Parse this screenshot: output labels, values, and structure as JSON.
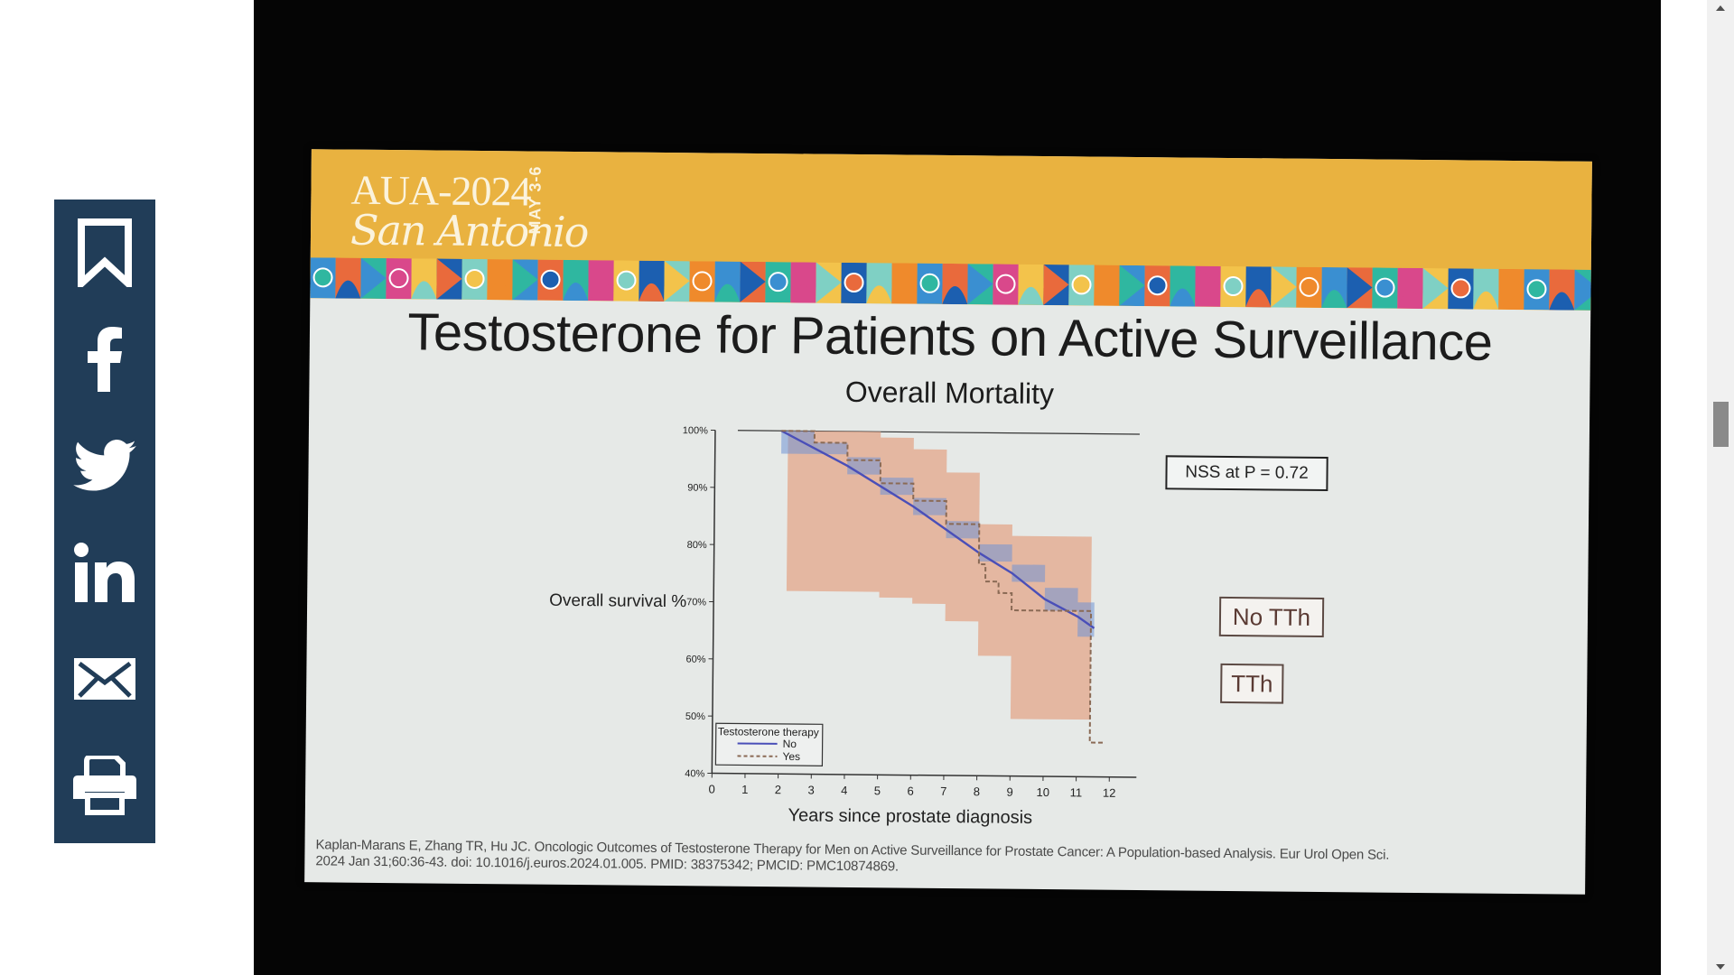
{
  "share": {
    "buttons": [
      {
        "icon": "bookmark-icon",
        "label": "Bookmark"
      },
      {
        "icon": "facebook-icon",
        "label": "Facebook"
      },
      {
        "icon": "twitter-icon",
        "label": "Twitter"
      },
      {
        "icon": "linkedin-icon",
        "label": "LinkedIn"
      },
      {
        "icon": "email-icon",
        "label": "Email"
      },
      {
        "icon": "print-icon",
        "label": "Print"
      }
    ],
    "color": "#213d58"
  },
  "slide": {
    "conference": "AUA-2024",
    "city": "San Antonio",
    "dates": "MAY 3-6",
    "title": "Testosterone for Patients on Active Surveillance",
    "subtitle": "Overall Mortality",
    "nss_label": "NSS at P = 0.72",
    "group_label_no": "No TTh",
    "group_label_yes": "TTh",
    "citation_line1": "Kaplan-Marans E, Zhang TR, Hu JC. Oncologic Outcomes of Testosterone Therapy for Men on Active Surveillance for Prostate Cancer: A Population-based Analysis. Eur Urol Open Sci.",
    "citation_line2": "2024 Jan 31;60:36-43. doi: 10.1016/j.euros.2024.01.005. PMID: 38375342; PMCID: PMC10874869.",
    "banner_color": "#e9b240"
  },
  "chart_data": {
    "type": "line",
    "title": "Overall Mortality",
    "xlabel": "Years since prostate diagnosis",
    "ylabel": "Overall survival %",
    "xlim": [
      0,
      12
    ],
    "ylim": [
      40,
      100
    ],
    "x_ticks": [
      "0",
      "1",
      "2",
      "3",
      "4",
      "5",
      "6",
      "7",
      "8",
      "9",
      "10",
      "11",
      "12"
    ],
    "y_ticks": [
      "40%",
      "50%",
      "60%",
      "70%",
      "80%",
      "90%",
      "100%"
    ],
    "legend_title": "Testosterone therapy",
    "legend_position": "bottom-left",
    "series": [
      {
        "name": "No",
        "style": "solid",
        "color": "#4a4fb8",
        "x": [
          2,
          3,
          4,
          5,
          6,
          7,
          8,
          9,
          10,
          11,
          11.5
        ],
        "y": [
          100,
          97,
          94,
          90.5,
          87,
          83,
          79,
          75.5,
          71,
          68,
          66
        ]
      },
      {
        "name": "Yes",
        "style": "dashed",
        "color": "#8a6a55",
        "x": [
          2,
          3,
          4,
          5,
          6,
          7,
          8,
          8.2,
          8.6,
          9,
          10,
          11,
          11.4,
          11.4,
          11.8
        ],
        "y": [
          100,
          98,
          95,
          91,
          88,
          84,
          77,
          74,
          72,
          69,
          69,
          69,
          69,
          46,
          46
        ]
      }
    ],
    "ci_bands": [
      {
        "series": "No",
        "color": "#6f93d6",
        "x": [
          2,
          3,
          4,
          5,
          6,
          7,
          8,
          9,
          10,
          11,
          11.5
        ],
        "upper": [
          100,
          98,
          95.5,
          92,
          88.5,
          84.5,
          80.5,
          77,
          73,
          70.5,
          70
        ],
        "lower": [
          96,
          96,
          92.5,
          89,
          85.5,
          81.5,
          77.5,
          74,
          69,
          64.5,
          62
        ]
      },
      {
        "series": "Yes",
        "color": "#e3a589",
        "x": [
          2.2,
          3,
          4,
          5,
          6,
          7,
          8,
          9,
          10,
          11,
          11.4
        ],
        "upper": [
          100,
          100,
          100,
          99,
          97,
          93,
          84,
          82,
          82,
          82,
          82
        ],
        "lower": [
          72,
          72,
          72,
          71,
          70,
          67,
          61,
          50,
          50,
          50,
          50
        ]
      }
    ],
    "annotations": [
      "NSS at P = 0.72",
      "No TTh",
      "TTh"
    ]
  }
}
